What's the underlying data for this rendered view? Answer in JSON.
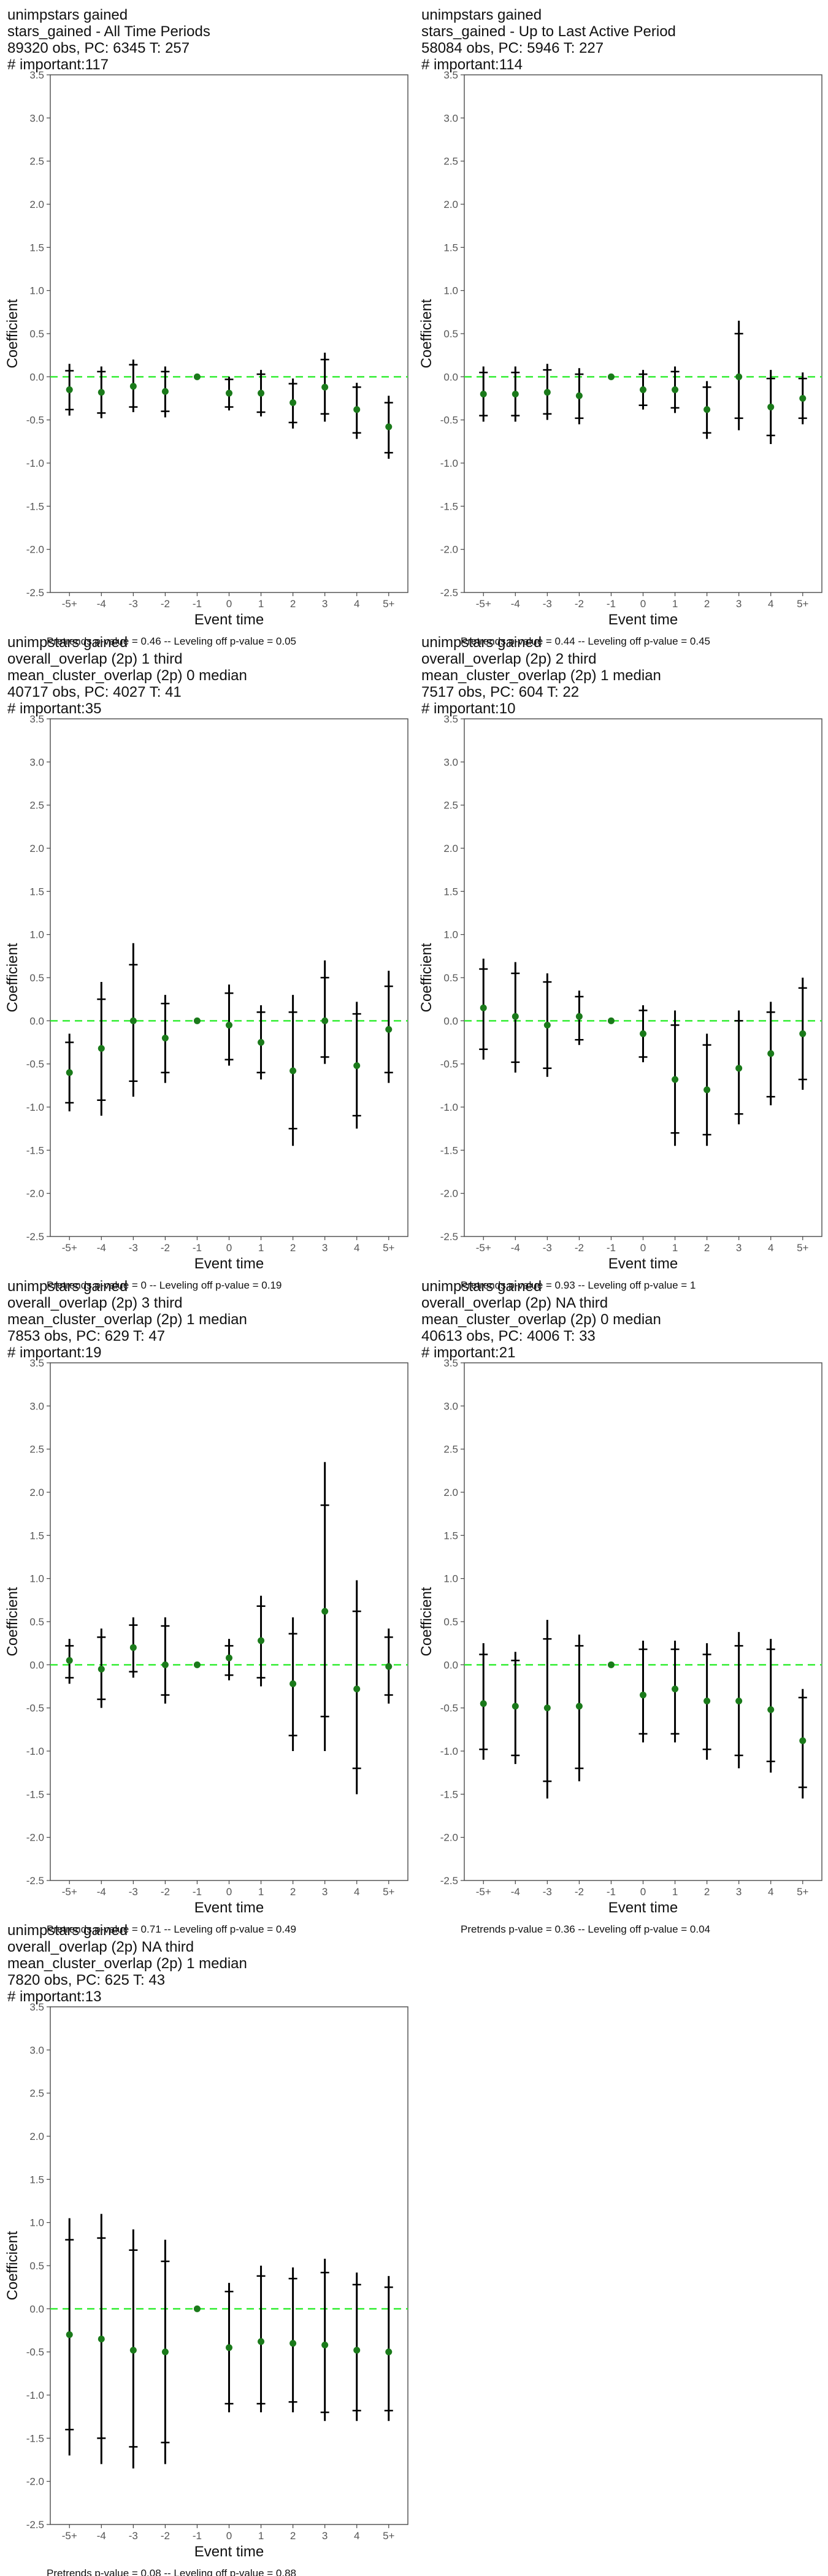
{
  "page": {
    "columns": 2
  },
  "axis": {
    "ylabel": "Coefficient",
    "xlabel": "Event time",
    "yticks": [
      "-2.5",
      "-2.0",
      "-1.5",
      "-1.0",
      "-0.5",
      "0.0",
      "0.5",
      "1.0",
      "1.5",
      "2.0",
      "2.5",
      "3.0",
      "3.5"
    ],
    "xticks": [
      "-5+",
      "-4",
      "-3",
      "-2",
      "-1",
      "0",
      "1",
      "2",
      "3",
      "4",
      "5+"
    ]
  },
  "style": {
    "point_color": "#1a7a1a",
    "zero_line_color": "#33ee33",
    "ci_color": "#000000",
    "frame_color": "#555555"
  },
  "chart_data": [
    {
      "type": "scatter",
      "title_lines": [
        " unimpstars gained",
        "stars_gained - All Time Periods",
        "89320 obs, PC: 6345 T: 257",
        "# important:117"
      ],
      "footer": "Pretrends p-value = 0.46 -- Leveling off p-value = 0.05",
      "ylim": [
        -2.5,
        3.5
      ],
      "x": [
        "-5+",
        "-4",
        "-3",
        "-2",
        "-1",
        "0",
        "1",
        "2",
        "3",
        "4",
        "5+"
      ],
      "y": [
        -0.15,
        -0.18,
        -0.11,
        -0.17,
        0.0,
        -0.19,
        -0.19,
        -0.3,
        -0.12,
        -0.38,
        -0.58
      ],
      "ci95": [
        [
          -0.45,
          0.15
        ],
        [
          -0.48,
          0.12
        ],
        [
          -0.41,
          0.2
        ],
        [
          -0.47,
          0.12
        ],
        [
          0,
          0
        ],
        [
          -0.39,
          0.0
        ],
        [
          -0.46,
          0.08
        ],
        [
          -0.6,
          -0.02
        ],
        [
          -0.52,
          0.28
        ],
        [
          -0.72,
          -0.07
        ],
        [
          -0.95,
          -0.22
        ]
      ],
      "ci90": [
        [
          -0.38,
          0.07
        ],
        [
          -0.42,
          0.06
        ],
        [
          -0.35,
          0.14
        ],
        [
          -0.4,
          0.06
        ],
        [
          0,
          0
        ],
        [
          -0.35,
          -0.03
        ],
        [
          -0.41,
          0.03
        ],
        [
          -0.53,
          -0.08
        ],
        [
          -0.43,
          0.2
        ],
        [
          -0.65,
          -0.12
        ],
        [
          -0.88,
          -0.3
        ]
      ]
    },
    {
      "type": "scatter",
      "title_lines": [
        " unimpstars gained",
        "stars_gained - Up to Last Active Period",
        "58084 obs, PC: 5946 T: 227",
        "# important:114"
      ],
      "footer": "Pretrends p-value = 0.44 -- Leveling off p-value = 0.45",
      "ylim": [
        -2.5,
        3.5
      ],
      "x": [
        "-5+",
        "-4",
        "-3",
        "-2",
        "-1",
        "0",
        "1",
        "2",
        "3",
        "4",
        "5+"
      ],
      "y": [
        -0.2,
        -0.2,
        -0.18,
        -0.22,
        0.0,
        -0.15,
        -0.15,
        -0.38,
        0.0,
        -0.35,
        -0.25
      ],
      "ci95": [
        [
          -0.52,
          0.12
        ],
        [
          -0.52,
          0.12
        ],
        [
          -0.5,
          0.15
        ],
        [
          -0.55,
          0.1
        ],
        [
          0,
          0
        ],
        [
          -0.38,
          0.08
        ],
        [
          -0.42,
          0.12
        ],
        [
          -0.72,
          -0.05
        ],
        [
          -0.62,
          0.65
        ],
        [
          -0.78,
          0.08
        ],
        [
          -0.55,
          0.05
        ]
      ],
      "ci90": [
        [
          -0.45,
          0.05
        ],
        [
          -0.45,
          0.05
        ],
        [
          -0.43,
          0.08
        ],
        [
          -0.48,
          0.03
        ],
        [
          0,
          0
        ],
        [
          -0.33,
          0.03
        ],
        [
          -0.36,
          0.06
        ],
        [
          -0.65,
          -0.12
        ],
        [
          -0.48,
          0.5
        ],
        [
          -0.68,
          -0.02
        ],
        [
          -0.48,
          -0.02
        ]
      ]
    },
    {
      "type": "scatter",
      "title_lines": [
        " unimpstars gained",
        "overall_overlap (2p) 1 third",
        "mean_cluster_overlap (2p) 0 median",
        "40717 obs, PC: 4027 T: 41",
        "# important:35"
      ],
      "footer": "Pretrends p-value = 0 -- Leveling off p-value = 0.19",
      "ylim": [
        -2.5,
        3.5
      ],
      "x": [
        "-5+",
        "-4",
        "-3",
        "-2",
        "-1",
        "0",
        "1",
        "2",
        "3",
        "4",
        "5+"
      ],
      "y": [
        -0.6,
        -0.32,
        0.0,
        -0.2,
        0.0,
        -0.05,
        -0.25,
        -0.58,
        0.0,
        -0.52,
        -0.1
      ],
      "ci95": [
        [
          -1.05,
          -0.15
        ],
        [
          -1.1,
          0.45
        ],
        [
          -0.88,
          0.9
        ],
        [
          -0.72,
          0.3
        ],
        [
          0,
          0
        ],
        [
          -0.52,
          0.42
        ],
        [
          -0.68,
          0.18
        ],
        [
          -1.45,
          0.3
        ],
        [
          -0.5,
          0.7
        ],
        [
          -1.25,
          0.22
        ],
        [
          -0.72,
          0.58
        ]
      ],
      "ci90": [
        [
          -0.95,
          -0.25
        ],
        [
          -0.92,
          0.25
        ],
        [
          -0.7,
          0.65
        ],
        [
          -0.6,
          0.2
        ],
        [
          0,
          0
        ],
        [
          -0.45,
          0.32
        ],
        [
          -0.6,
          0.1
        ],
        [
          -1.25,
          0.1
        ],
        [
          -0.42,
          0.5
        ],
        [
          -1.1,
          0.08
        ],
        [
          -0.6,
          0.4
        ]
      ]
    },
    {
      "type": "scatter",
      "title_lines": [
        " unimpstars gained",
        "overall_overlap (2p) 2 third",
        "mean_cluster_overlap (2p) 1 median",
        "7517 obs, PC: 604 T: 22",
        "# important:10"
      ],
      "footer": "Pretrends p-value = 0.93 -- Leveling off p-value = 1",
      "ylim": [
        -2.5,
        3.5
      ],
      "x": [
        "-5+",
        "-4",
        "-3",
        "-2",
        "-1",
        "0",
        "1",
        "2",
        "3",
        "4",
        "5+"
      ],
      "y": [
        0.15,
        0.05,
        -0.05,
        0.05,
        0.0,
        -0.15,
        -0.68,
        -0.8,
        -0.55,
        -0.38,
        -0.15
      ],
      "ci95": [
        [
          -0.45,
          0.72
        ],
        [
          -0.6,
          0.68
        ],
        [
          -0.65,
          0.55
        ],
        [
          -0.28,
          0.35
        ],
        [
          0,
          0
        ],
        [
          -0.48,
          0.18
        ],
        [
          -1.45,
          0.12
        ],
        [
          -1.45,
          -0.15
        ],
        [
          -1.2,
          0.12
        ],
        [
          -0.98,
          0.22
        ],
        [
          -0.8,
          0.5
        ]
      ],
      "ci90": [
        [
          -0.33,
          0.6
        ],
        [
          -0.48,
          0.55
        ],
        [
          -0.55,
          0.45
        ],
        [
          -0.22,
          0.28
        ],
        [
          0,
          0
        ],
        [
          -0.42,
          0.12
        ],
        [
          -1.3,
          -0.05
        ],
        [
          -1.32,
          -0.28
        ],
        [
          -1.08,
          0.0
        ],
        [
          -0.88,
          0.1
        ],
        [
          -0.68,
          0.38
        ]
      ]
    },
    {
      "type": "scatter",
      "title_lines": [
        " unimpstars gained",
        "overall_overlap (2p) 3 third",
        "mean_cluster_overlap (2p) 1 median",
        "7853 obs, PC: 629 T: 47",
        "# important:19"
      ],
      "footer": "Pretrends p-value = 0.71 -- Leveling off p-value = 0.49",
      "ylim": [
        -2.5,
        3.5
      ],
      "x": [
        "-5+",
        "-4",
        "-3",
        "-2",
        "-1",
        "0",
        "1",
        "2",
        "3",
        "4",
        "5+"
      ],
      "y": [
        0.05,
        -0.05,
        0.2,
        0.0,
        0.0,
        0.08,
        0.28,
        -0.22,
        0.62,
        -0.28,
        -0.02
      ],
      "ci95": [
        [
          -0.22,
          0.3
        ],
        [
          -0.5,
          0.42
        ],
        [
          -0.15,
          0.55
        ],
        [
          -0.45,
          0.55
        ],
        [
          0,
          0
        ],
        [
          -0.18,
          0.3
        ],
        [
          -0.25,
          0.8
        ],
        [
          -1.0,
          0.55
        ],
        [
          -1.0,
          2.35
        ],
        [
          -1.5,
          0.98
        ],
        [
          -0.45,
          0.42
        ]
      ],
      "ci90": [
        [
          -0.15,
          0.22
        ],
        [
          -0.4,
          0.32
        ],
        [
          -0.08,
          0.46
        ],
        [
          -0.35,
          0.45
        ],
        [
          0,
          0
        ],
        [
          -0.12,
          0.22
        ],
        [
          -0.15,
          0.68
        ],
        [
          -0.82,
          0.36
        ],
        [
          -0.6,
          1.85
        ],
        [
          -1.2,
          0.62
        ],
        [
          -0.35,
          0.32
        ]
      ]
    },
    {
      "type": "scatter",
      "title_lines": [
        " unimpstars gained",
        "overall_overlap (2p) NA third",
        "mean_cluster_overlap (2p) 0 median",
        "40613 obs, PC: 4006 T: 33",
        "# important:21"
      ],
      "footer": "Pretrends p-value = 0.36 -- Leveling off p-value = 0.04",
      "ylim": [
        -2.5,
        3.5
      ],
      "x": [
        "-5+",
        "-4",
        "-3",
        "-2",
        "-1",
        "0",
        "1",
        "2",
        "3",
        "4",
        "5+"
      ],
      "y": [
        -0.45,
        -0.48,
        -0.5,
        -0.48,
        0.0,
        -0.35,
        -0.28,
        -0.42,
        -0.42,
        -0.52,
        -0.88
      ],
      "ci95": [
        [
          -1.1,
          0.25
        ],
        [
          -1.15,
          0.15
        ],
        [
          -1.55,
          0.52
        ],
        [
          -1.35,
          0.35
        ],
        [
          0,
          0
        ],
        [
          -0.9,
          0.28
        ],
        [
          -0.9,
          0.28
        ],
        [
          -1.1,
          0.25
        ],
        [
          -1.2,
          0.38
        ],
        [
          -1.25,
          0.3
        ],
        [
          -1.55,
          -0.28
        ]
      ],
      "ci90": [
        [
          -0.98,
          0.12
        ],
        [
          -1.05,
          0.05
        ],
        [
          -1.35,
          0.3
        ],
        [
          -1.2,
          0.22
        ],
        [
          0,
          0
        ],
        [
          -0.8,
          0.18
        ],
        [
          -0.8,
          0.18
        ],
        [
          -0.98,
          0.12
        ],
        [
          -1.05,
          0.22
        ],
        [
          -1.12,
          0.18
        ],
        [
          -1.42,
          -0.38
        ]
      ]
    },
    {
      "type": "scatter",
      "title_lines": [
        " unimpstars gained",
        "overall_overlap (2p) NA third",
        "mean_cluster_overlap (2p) 1 median",
        "7820 obs, PC: 625 T: 43",
        "# important:13"
      ],
      "footer": "Pretrends p-value = 0.08 -- Leveling off p-value = 0.88",
      "ylim": [
        -2.5,
        3.5
      ],
      "x": [
        "-5+",
        "-4",
        "-3",
        "-2",
        "-1",
        "0",
        "1",
        "2",
        "3",
        "4",
        "5+"
      ],
      "y": [
        -0.3,
        -0.35,
        -0.48,
        -0.5,
        0.0,
        -0.45,
        -0.38,
        -0.4,
        -0.42,
        -0.48,
        -0.5
      ],
      "ci95": [
        [
          -1.7,
          1.05
        ],
        [
          -1.8,
          1.1
        ],
        [
          -1.85,
          0.92
        ],
        [
          -1.8,
          0.8
        ],
        [
          0,
          0
        ],
        [
          -1.2,
          0.3
        ],
        [
          -1.2,
          0.5
        ],
        [
          -1.2,
          0.48
        ],
        [
          -1.3,
          0.58
        ],
        [
          -1.3,
          0.42
        ],
        [
          -1.3,
          0.38
        ]
      ],
      "ci90": [
        [
          -1.4,
          0.8
        ],
        [
          -1.5,
          0.82
        ],
        [
          -1.6,
          0.68
        ],
        [
          -1.55,
          0.55
        ],
        [
          0,
          0
        ],
        [
          -1.1,
          0.2
        ],
        [
          -1.1,
          0.38
        ],
        [
          -1.08,
          0.35
        ],
        [
          -1.2,
          0.42
        ],
        [
          -1.18,
          0.28
        ],
        [
          -1.18,
          0.25
        ]
      ]
    }
  ]
}
